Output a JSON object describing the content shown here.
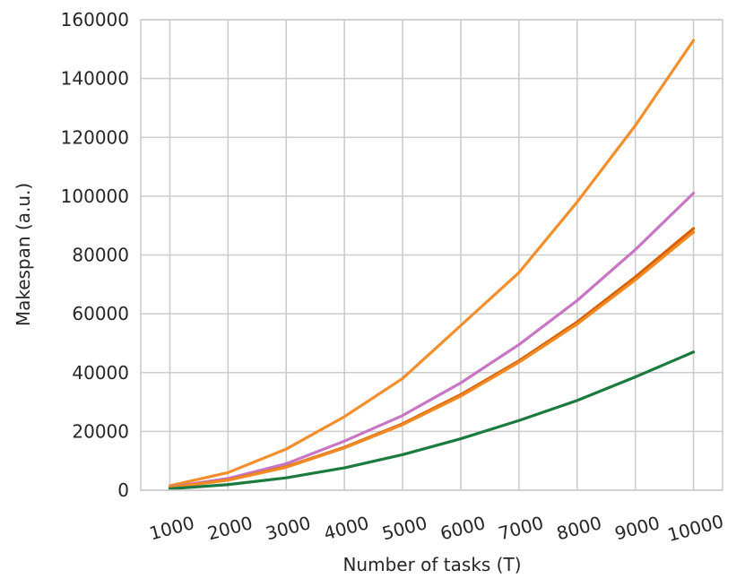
{
  "chart_data": {
    "type": "line",
    "xlabel": "Number of tasks (T)",
    "ylabel": "Makespan (a.u.)",
    "xlim": [
      500,
      10500
    ],
    "ylim": [
      0,
      160000
    ],
    "x_ticks": [
      "1000",
      "2000",
      "3000",
      "4000",
      "5000",
      "6000",
      "7000",
      "8000",
      "9000",
      "10000"
    ],
    "y_ticks": [
      "0",
      "20000",
      "40000",
      "60000",
      "80000",
      "100000",
      "120000",
      "140000",
      "160000"
    ],
    "grid": true,
    "colors": {
      "orange_top": "#f28e2b",
      "pink": "#c875c4",
      "red_orange": "#d95f02",
      "orange_mid": "#f08a24",
      "green": "#1b7a3d",
      "grid": "#cccccc",
      "text": "#262626"
    },
    "x": [
      1000,
      2000,
      3000,
      4000,
      5000,
      6000,
      7000,
      8000,
      9000,
      10000
    ],
    "series": [
      {
        "color_key": "orange_top",
        "values": [
          1500,
          6000,
          14000,
          25000,
          38000,
          56000,
          74000,
          98000,
          124000,
          153000
        ]
      },
      {
        "color_key": "pink",
        "values": [
          1000,
          4000,
          9000,
          16700,
          25400,
          36500,
          49500,
          64500,
          81800,
          101000
        ]
      },
      {
        "color_key": "red_orange",
        "values": [
          900,
          3500,
          8000,
          14600,
          22600,
          32500,
          44000,
          57200,
          72500,
          89000
        ]
      },
      {
        "color_key": "orange_mid",
        "values": [
          850,
          3400,
          7800,
          14400,
          22300,
          32000,
          43500,
          56500,
          71500,
          87800
        ]
      },
      {
        "color_key": "green",
        "values": [
          470,
          1900,
          4200,
          7600,
          12100,
          17500,
          23700,
          30500,
          38500,
          47000
        ]
      }
    ]
  }
}
